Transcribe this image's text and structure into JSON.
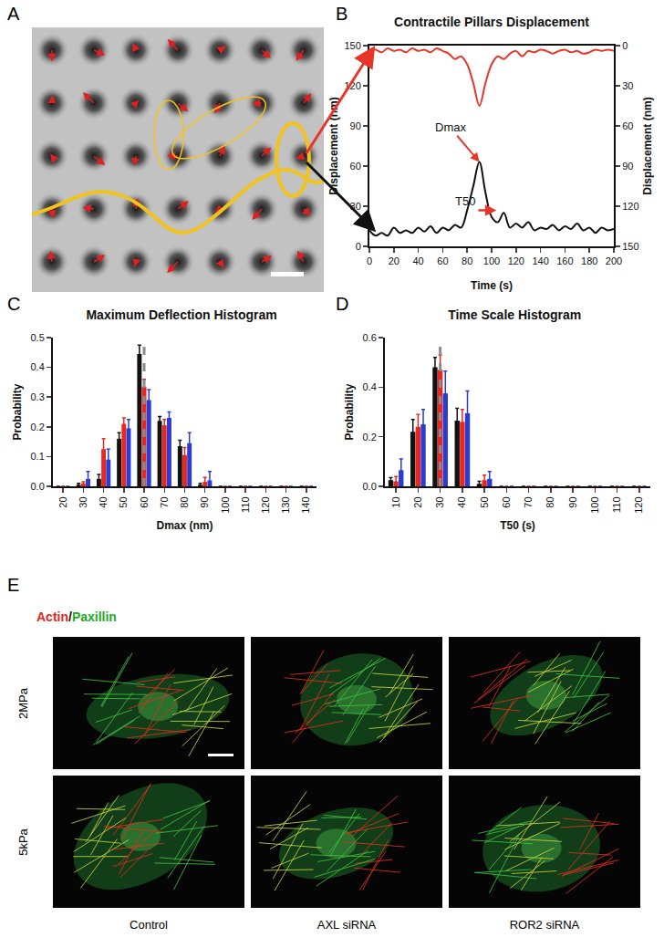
{
  "panel_labels": [
    "A",
    "B",
    "C",
    "D",
    "E"
  ],
  "chart_data": [
    {
      "type": "line",
      "title": "Contractile Pillars Displacement",
      "xlabel": "Time (s)",
      "ylabel": "Displacement (nm)",
      "y2label": "Displacement (nm)",
      "x": [
        0,
        5,
        10,
        15,
        20,
        25,
        30,
        35,
        40,
        45,
        50,
        55,
        60,
        65,
        70,
        75,
        80,
        85,
        90,
        95,
        100,
        105,
        110,
        115,
        120,
        125,
        130,
        135,
        140,
        145,
        150,
        155,
        160,
        165,
        170,
        175,
        180,
        185,
        190,
        195,
        200
      ],
      "series": [
        {
          "color": "#e8352a",
          "axis": "y2",
          "values": [
            4,
            3,
            5,
            2,
            4,
            3,
            5,
            2,
            4,
            3,
            5,
            2,
            4,
            6,
            10,
            8,
            14,
            28,
            45,
            28,
            14,
            8,
            10,
            6,
            4,
            8,
            4,
            5,
            3,
            4,
            6,
            4,
            3,
            5,
            4,
            6,
            5,
            3,
            4,
            3,
            4
          ]
        },
        {
          "color": "#111111",
          "values": [
            12,
            8,
            10,
            8,
            14,
            10,
            12,
            10,
            14,
            11,
            15,
            10,
            14,
            12,
            16,
            14,
            27,
            45,
            63,
            40,
            22,
            18,
            25,
            14,
            17,
            14,
            18,
            12,
            14,
            13,
            16,
            12,
            15,
            13,
            17,
            12,
            14,
            10,
            14,
            12,
            13
          ]
        }
      ],
      "xlim": [
        0,
        200
      ],
      "xticks": [
        0,
        20,
        40,
        60,
        80,
        100,
        120,
        140,
        160,
        180,
        200
      ],
      "ylim": [
        0,
        150
      ],
      "yticks": [
        0,
        30,
        60,
        90,
        120,
        150
      ],
      "y2lim": [
        150,
        0
      ],
      "y2ticks": [
        0,
        30,
        60,
        90,
        120,
        150
      ],
      "annotations": [
        {
          "text": "Dmax",
          "x": 90,
          "y": 63
        },
        {
          "text": "T50",
          "x": 88,
          "y": 27,
          "x2": 104
        }
      ]
    },
    {
      "type": "bar",
      "title": "Maximum Deflection Histogram",
      "xlabel": "Dmax (nm)",
      "ylabel": "Probability",
      "categories": [
        "20",
        "30",
        "40",
        "50",
        "60",
        "70",
        "80",
        "90",
        "100",
        "110",
        "120",
        "130",
        "140"
      ],
      "series": [
        {
          "color": "#111111",
          "values": [
            0,
            0.005,
            0.025,
            0.16,
            0.445,
            0.22,
            0.135,
            0.005,
            0,
            0,
            0,
            0,
            0
          ],
          "errors": [
            0,
            0.005,
            0.015,
            0.02,
            0.03,
            0.015,
            0.02,
            0.005,
            0,
            0,
            0,
            0,
            0
          ]
        },
        {
          "color": "#e8281e",
          "values": [
            0,
            0.01,
            0.125,
            0.21,
            0.335,
            0.205,
            0.105,
            0.015,
            0,
            0,
            0,
            0,
            0
          ],
          "errors": [
            0,
            0.005,
            0.035,
            0.02,
            0.025,
            0.02,
            0.025,
            0.015,
            0,
            0,
            0,
            0,
            0
          ]
        },
        {
          "color": "#2a3bd6",
          "values": [
            0,
            0.025,
            0.09,
            0.195,
            0.29,
            0.23,
            0.145,
            0.02,
            0,
            0,
            0,
            0,
            0
          ],
          "errors": [
            0,
            0.025,
            0.035,
            0.03,
            0.035,
            0.02,
            0.035,
            0.03,
            0,
            0,
            0,
            0,
            0
          ]
        }
      ],
      "ylim": [
        0,
        0.5
      ],
      "yticks": [
        {
          "value": 0,
          "label": "0.0"
        },
        0.1,
        0.2,
        0.3,
        0.4,
        0.5
      ],
      "reference_line": {
        "category": "60",
        "line_style": "dashed",
        "color": "#8c8c8c"
      }
    },
    {
      "type": "bar",
      "title": "Time Scale Histogram",
      "xlabel": "T50 (s)",
      "ylabel": "Probability",
      "categories": [
        "10",
        "20",
        "30",
        "40",
        "50",
        "60",
        "70",
        "80",
        "90",
        "100",
        "110",
        "120"
      ],
      "series": [
        {
          "color": "#111111",
          "values": [
            0.025,
            0.22,
            0.48,
            0.265,
            0.01,
            0,
            0,
            0,
            0,
            0,
            0,
            0
          ],
          "errors": [
            0.01,
            0.05,
            0.04,
            0.05,
            0.01,
            0,
            0,
            0,
            0,
            0,
            0,
            0
          ]
        },
        {
          "color": "#e8281e",
          "values": [
            0.02,
            0.24,
            0.47,
            0.26,
            0.025,
            0,
            0,
            0,
            0,
            0,
            0,
            0
          ],
          "errors": [
            0.02,
            0.05,
            0.06,
            0.05,
            0.02,
            0,
            0,
            0,
            0,
            0,
            0,
            0
          ]
        },
        {
          "color": "#2a3bd6",
          "values": [
            0.065,
            0.25,
            0.375,
            0.295,
            0.03,
            0,
            0,
            0,
            0,
            0,
            0,
            0
          ],
          "errors": [
            0.045,
            0.06,
            0.09,
            0.09,
            0.03,
            0,
            0,
            0,
            0,
            0,
            0,
            0
          ]
        }
      ],
      "ylim": [
        0,
        0.6
      ],
      "yticks": [
        {
          "value": 0,
          "label": "0.0"
        },
        0.2,
        0.4,
        0.6
      ],
      "reference_line": {
        "category": "30",
        "line_style": "dashed",
        "color": "#8c8c8c"
      }
    }
  ],
  "panel_e": {
    "stain": [
      {
        "text": "Actin",
        "color": "#e8281e"
      },
      {
        "text": "/",
        "color": "#111111"
      },
      {
        "text": "Paxillin",
        "color": "#22aa22"
      }
    ],
    "rows": [
      "2MPa",
      "5kPa"
    ],
    "columns": [
      "Control",
      "AXL siRNA",
      "ROR2 siRNA"
    ]
  }
}
